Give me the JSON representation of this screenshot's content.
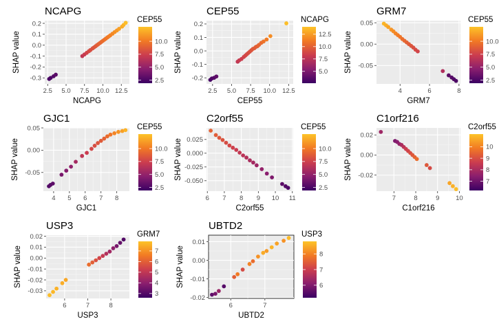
{
  "figure": {
    "ylabel": "SHAP value"
  },
  "chart_data": [
    {
      "type": "scatter",
      "title": "NCAPG",
      "xlabel": "NCAPG",
      "ylabel": "SHAP value",
      "color_label": "CEP55",
      "xlim": [
        2.1,
        13.6
      ],
      "ylim": [
        -0.355,
        0.225
      ],
      "xticks": [
        2.5,
        5.0,
        7.5,
        10.0,
        12.5
      ],
      "yticks": [
        -0.3,
        -0.2,
        -0.1,
        0.0,
        0.1,
        0.2
      ],
      "color_range": [
        1.9,
        12.8
      ],
      "color_ticks": [
        2.5,
        5.0,
        7.5,
        10.0
      ],
      "panel_border": false,
      "points": [
        [
          2.7,
          -0.31,
          2.4
        ],
        [
          2.9,
          -0.3,
          2.5
        ],
        [
          3.3,
          -0.285,
          2.8
        ],
        [
          3.6,
          -0.27,
          3.0
        ],
        [
          7.2,
          -0.1,
          6.8
        ],
        [
          7.5,
          -0.085,
          7.2
        ],
        [
          7.8,
          -0.07,
          7.6
        ],
        [
          8.1,
          -0.055,
          7.9
        ],
        [
          8.3,
          -0.045,
          8.1
        ],
        [
          8.6,
          -0.03,
          8.3
        ],
        [
          8.8,
          -0.02,
          8.4
        ],
        [
          9.0,
          -0.01,
          8.6
        ],
        [
          9.2,
          0.0,
          8.8
        ],
        [
          9.4,
          0.01,
          9.0
        ],
        [
          9.6,
          0.02,
          9.1
        ],
        [
          9.8,
          0.03,
          9.3
        ],
        [
          10.0,
          0.04,
          9.5
        ],
        [
          10.2,
          0.05,
          9.6
        ],
        [
          10.4,
          0.06,
          9.8
        ],
        [
          10.6,
          0.07,
          10.0
        ],
        [
          10.8,
          0.08,
          10.1
        ],
        [
          11.0,
          0.09,
          10.3
        ],
        [
          11.3,
          0.105,
          10.6
        ],
        [
          11.6,
          0.12,
          10.9
        ],
        [
          11.9,
          0.135,
          11.2
        ],
        [
          12.2,
          0.15,
          11.5
        ],
        [
          12.6,
          0.17,
          11.9
        ],
        [
          12.8,
          0.185,
          12.2
        ],
        [
          13.1,
          0.205,
          12.6
        ]
      ]
    },
    {
      "type": "scatter",
      "title": "CEP55",
      "xlabel": "CEP55",
      "ylabel": "SHAP value",
      "color_label": "NCAPG",
      "xlim": [
        1.7,
        13.1
      ],
      "ylim": [
        -0.245,
        0.225
      ],
      "xticks": [
        2.5,
        5.0,
        7.5,
        10.0,
        12.5
      ],
      "yticks": [
        -0.2,
        -0.1,
        0.0,
        0.1,
        0.2
      ],
      "color_range": [
        2.6,
        14.0
      ],
      "color_ticks": [
        5.0,
        7.5,
        10.0,
        12.5
      ],
      "panel_border": false,
      "points": [
        [
          2.2,
          -0.215,
          3.0
        ],
        [
          2.4,
          -0.205,
          3.3
        ],
        [
          2.7,
          -0.2,
          3.6
        ],
        [
          3.0,
          -0.19,
          3.9
        ],
        [
          5.8,
          -0.08,
          7.8
        ],
        [
          6.0,
          -0.07,
          8.1
        ],
        [
          6.3,
          -0.06,
          8.3
        ],
        [
          6.6,
          -0.045,
          8.5
        ],
        [
          6.8,
          -0.035,
          8.7
        ],
        [
          7.0,
          -0.025,
          8.9
        ],
        [
          7.2,
          -0.015,
          9.0
        ],
        [
          7.4,
          -0.005,
          9.2
        ],
        [
          7.6,
          0.005,
          9.4
        ],
        [
          7.8,
          0.015,
          9.6
        ],
        [
          8.0,
          0.02,
          9.7
        ],
        [
          8.2,
          0.03,
          9.9
        ],
        [
          8.4,
          0.035,
          10.0
        ],
        [
          8.6,
          0.045,
          10.2
        ],
        [
          8.9,
          0.06,
          10.5
        ],
        [
          9.2,
          0.07,
          10.8
        ],
        [
          9.6,
          0.085,
          11.2
        ],
        [
          10.1,
          0.11,
          11.9
        ],
        [
          12.2,
          0.205,
          13.8
        ]
      ]
    },
    {
      "type": "scatter",
      "title": "GRM7",
      "xlabel": "GRM7",
      "ylabel": "SHAP value",
      "color_label": "CEP55",
      "xlim": [
        2.4,
        8.1
      ],
      "ylim": [
        -0.093,
        0.055
      ],
      "xticks": [
        4,
        6,
        8
      ],
      "yticks": [
        -0.05,
        0.0,
        0.05
      ],
      "color_range": [
        1.9,
        12.8
      ],
      "color_ticks": [
        2.5,
        5.0,
        7.5,
        10.0
      ],
      "panel_border": false,
      "points": [
        [
          2.9,
          0.048,
          12.3
        ],
        [
          3.05,
          0.044,
          12.0
        ],
        [
          3.2,
          0.04,
          11.6
        ],
        [
          3.4,
          0.034,
          11.1
        ],
        [
          3.55,
          0.03,
          10.8
        ],
        [
          3.7,
          0.025,
          10.5
        ],
        [
          3.85,
          0.021,
          10.2
        ],
        [
          4.0,
          0.017,
          9.9
        ],
        [
          4.15,
          0.012,
          9.6
        ],
        [
          4.3,
          0.008,
          9.3
        ],
        [
          4.45,
          0.004,
          9.0
        ],
        [
          4.6,
          0.0,
          8.8
        ],
        [
          4.75,
          -0.004,
          8.5
        ],
        [
          4.9,
          -0.008,
          8.2
        ],
        [
          5.05,
          -0.013,
          8.0
        ],
        [
          5.2,
          -0.017,
          7.7
        ],
        [
          6.9,
          -0.063,
          6.2
        ],
        [
          7.3,
          -0.073,
          3.0
        ],
        [
          7.5,
          -0.078,
          2.9
        ],
        [
          7.65,
          -0.082,
          2.7
        ],
        [
          7.8,
          -0.086,
          2.5
        ]
      ]
    },
    {
      "type": "scatter",
      "title": "GJC1",
      "xlabel": "GJC1",
      "ylabel": "SHAP value",
      "color_label": "CEP55",
      "xlim": [
        3.35,
        8.8
      ],
      "ylim": [
        -0.092,
        0.05
      ],
      "xticks": [
        4,
        5,
        6,
        7,
        8
      ],
      "yticks": [
        -0.05,
        0.0,
        0.05
      ],
      "color_range": [
        1.9,
        12.8
      ],
      "color_ticks": [
        2.5,
        5.0,
        7.5,
        10.0
      ],
      "panel_border": false,
      "points": [
        [
          3.7,
          -0.081,
          2.7
        ],
        [
          3.8,
          -0.078,
          2.9
        ],
        [
          3.95,
          -0.075,
          3.1
        ],
        [
          4.5,
          -0.055,
          4.0
        ],
        [
          4.8,
          -0.046,
          4.5
        ],
        [
          5.1,
          -0.037,
          4.9
        ],
        [
          5.4,
          -0.026,
          5.7
        ],
        [
          5.8,
          -0.013,
          6.8
        ],
        [
          6.1,
          -0.006,
          7.3
        ],
        [
          6.4,
          0.003,
          7.8
        ],
        [
          6.6,
          0.01,
          8.1
        ],
        [
          6.8,
          0.016,
          8.4
        ],
        [
          7.0,
          0.021,
          8.7
        ],
        [
          7.2,
          0.026,
          9.0
        ],
        [
          7.4,
          0.031,
          9.4
        ],
        [
          7.6,
          0.035,
          9.9
        ],
        [
          7.85,
          0.038,
          10.5
        ],
        [
          8.1,
          0.041,
          11.0
        ],
        [
          8.35,
          0.043,
          11.5
        ],
        [
          8.55,
          0.045,
          12.2
        ]
      ]
    },
    {
      "type": "scatter",
      "title": "C2orf55",
      "xlabel": "C2orf55",
      "ylabel": "SHAP value",
      "color_label": "CEP55",
      "xlim": [
        5.95,
        11.05
      ],
      "ylim": [
        -0.069,
        0.046
      ],
      "xticks": [
        6,
        7,
        8,
        9,
        10,
        11
      ],
      "yticks": [
        -0.05,
        -0.025,
        0.0,
        0.025
      ],
      "color_range": [
        1.9,
        12.8
      ],
      "color_ticks": [
        2.5,
        5.0,
        7.5,
        10.0
      ],
      "panel_border": false,
      "points": [
        [
          6.2,
          0.041,
          9.0
        ],
        [
          6.5,
          0.033,
          8.8
        ],
        [
          6.7,
          0.028,
          8.5
        ],
        [
          6.9,
          0.024,
          8.3
        ],
        [
          7.1,
          0.019,
          8.0
        ],
        [
          7.3,
          0.014,
          7.8
        ],
        [
          7.5,
          0.01,
          7.5
        ],
        [
          7.7,
          0.006,
          7.2
        ],
        [
          7.9,
          0.001,
          6.9
        ],
        [
          8.1,
          -0.004,
          6.6
        ],
        [
          8.3,
          -0.008,
          6.3
        ],
        [
          8.5,
          -0.013,
          6.0
        ],
        [
          8.7,
          -0.017,
          5.7
        ],
        [
          8.9,
          -0.022,
          5.4
        ],
        [
          9.2,
          -0.029,
          5.0
        ],
        [
          9.5,
          -0.037,
          4.6
        ],
        [
          9.8,
          -0.044,
          4.2
        ],
        [
          10.4,
          -0.056,
          3.1
        ],
        [
          10.6,
          -0.06,
          2.8
        ],
        [
          10.75,
          -0.063,
          2.6
        ]
      ]
    },
    {
      "type": "scatter",
      "title": "C1orf216",
      "xlabel": "C1orf216",
      "ylabel": "SHAP value",
      "color_label": "C2orf55",
      "xlim": [
        6.2,
        10.05
      ],
      "ylim": [
        -0.036,
        0.027
      ],
      "xticks": [
        7,
        8,
        9,
        10
      ],
      "yticks": [
        -0.02,
        0.0,
        0.02
      ],
      "color_range": [
        6.2,
        11.1
      ],
      "color_ticks": [
        7,
        8,
        9,
        10
      ],
      "panel_border": false,
      "points": [
        [
          6.4,
          0.023,
          7.8
        ],
        [
          7.05,
          0.014,
          7.2
        ],
        [
          7.15,
          0.013,
          7.4
        ],
        [
          7.25,
          0.011,
          7.6
        ],
        [
          7.35,
          0.01,
          8.0
        ],
        [
          7.45,
          0.008,
          8.3
        ],
        [
          7.55,
          0.006,
          8.6
        ],
        [
          7.65,
          0.004,
          8.8
        ],
        [
          7.75,
          0.002,
          9.0
        ],
        [
          7.85,
          0.0,
          9.2
        ],
        [
          7.95,
          -0.002,
          9.4
        ],
        [
          8.05,
          -0.004,
          9.6
        ],
        [
          8.5,
          -0.01,
          9.2
        ],
        [
          8.65,
          -0.013,
          8.9
        ],
        [
          9.55,
          -0.028,
          10.6
        ],
        [
          9.7,
          -0.031,
          10.8
        ],
        [
          9.85,
          -0.034,
          11.0
        ]
      ]
    },
    {
      "type": "scatter",
      "title": "USP3",
      "xlabel": "USP3",
      "ylabel": "SHAP value",
      "color_label": "GRM7",
      "xlim": [
        5.2,
        8.8
      ],
      "ylim": [
        -0.037,
        0.021
      ],
      "xticks": [
        6,
        7,
        8
      ],
      "yticks": [
        -0.03,
        -0.02,
        -0.01,
        0.0,
        0.01,
        0.02
      ],
      "color_range": [
        2.6,
        7.9
      ],
      "color_ticks": [
        3,
        4,
        5,
        6,
        7
      ],
      "panel_border": false,
      "points": [
        [
          5.35,
          -0.034,
          7.8
        ],
        [
          5.5,
          -0.031,
          7.7
        ],
        [
          5.65,
          -0.028,
          7.6
        ],
        [
          5.9,
          -0.023,
          7.5
        ],
        [
          6.05,
          -0.02,
          7.4
        ],
        [
          7.05,
          -0.006,
          6.3
        ],
        [
          7.2,
          -0.004,
          6.0
        ],
        [
          7.35,
          -0.002,
          5.7
        ],
        [
          7.5,
          0.0,
          5.4
        ],
        [
          7.65,
          0.002,
          5.1
        ],
        [
          7.8,
          0.004,
          4.7
        ],
        [
          7.95,
          0.006,
          4.4
        ],
        [
          8.1,
          0.009,
          4.0
        ],
        [
          8.25,
          0.011,
          3.6
        ],
        [
          8.4,
          0.014,
          3.3
        ],
        [
          8.55,
          0.017,
          3.0
        ]
      ]
    },
    {
      "type": "scatter",
      "title": "UBTD2",
      "xlabel": "UBTD2",
      "ylabel": "SHAP value",
      "color_label": "USP3",
      "xlim": [
        5.35,
        7.85
      ],
      "ylim": [
        -0.0205,
        0.0135
      ],
      "xticks": [
        6,
        7
      ],
      "yticks": [
        -0.02,
        -0.01,
        0.0,
        0.01
      ],
      "color_range": [
        5.2,
        8.8
      ],
      "color_ticks": [
        6,
        7,
        8
      ],
      "panel_border": true,
      "points": [
        [
          5.45,
          -0.0185,
          5.6
        ],
        [
          5.55,
          -0.018,
          5.9
        ],
        [
          5.65,
          -0.0165,
          6.3
        ],
        [
          5.8,
          -0.014,
          5.5
        ],
        [
          6.1,
          -0.009,
          7.5
        ],
        [
          6.2,
          -0.0075,
          7.9
        ],
        [
          6.35,
          -0.005,
          7.2
        ],
        [
          6.55,
          -0.002,
          8.0
        ],
        [
          6.65,
          -0.0005,
          7.7
        ],
        [
          6.8,
          0.002,
          8.2
        ],
        [
          6.95,
          0.004,
          8.5
        ],
        [
          7.05,
          0.005,
          8.3
        ],
        [
          7.2,
          0.007,
          8.6
        ],
        [
          7.35,
          0.009,
          8.4
        ],
        [
          7.55,
          0.0105,
          8.2
        ],
        [
          7.7,
          0.012,
          8.7
        ]
      ]
    }
  ]
}
